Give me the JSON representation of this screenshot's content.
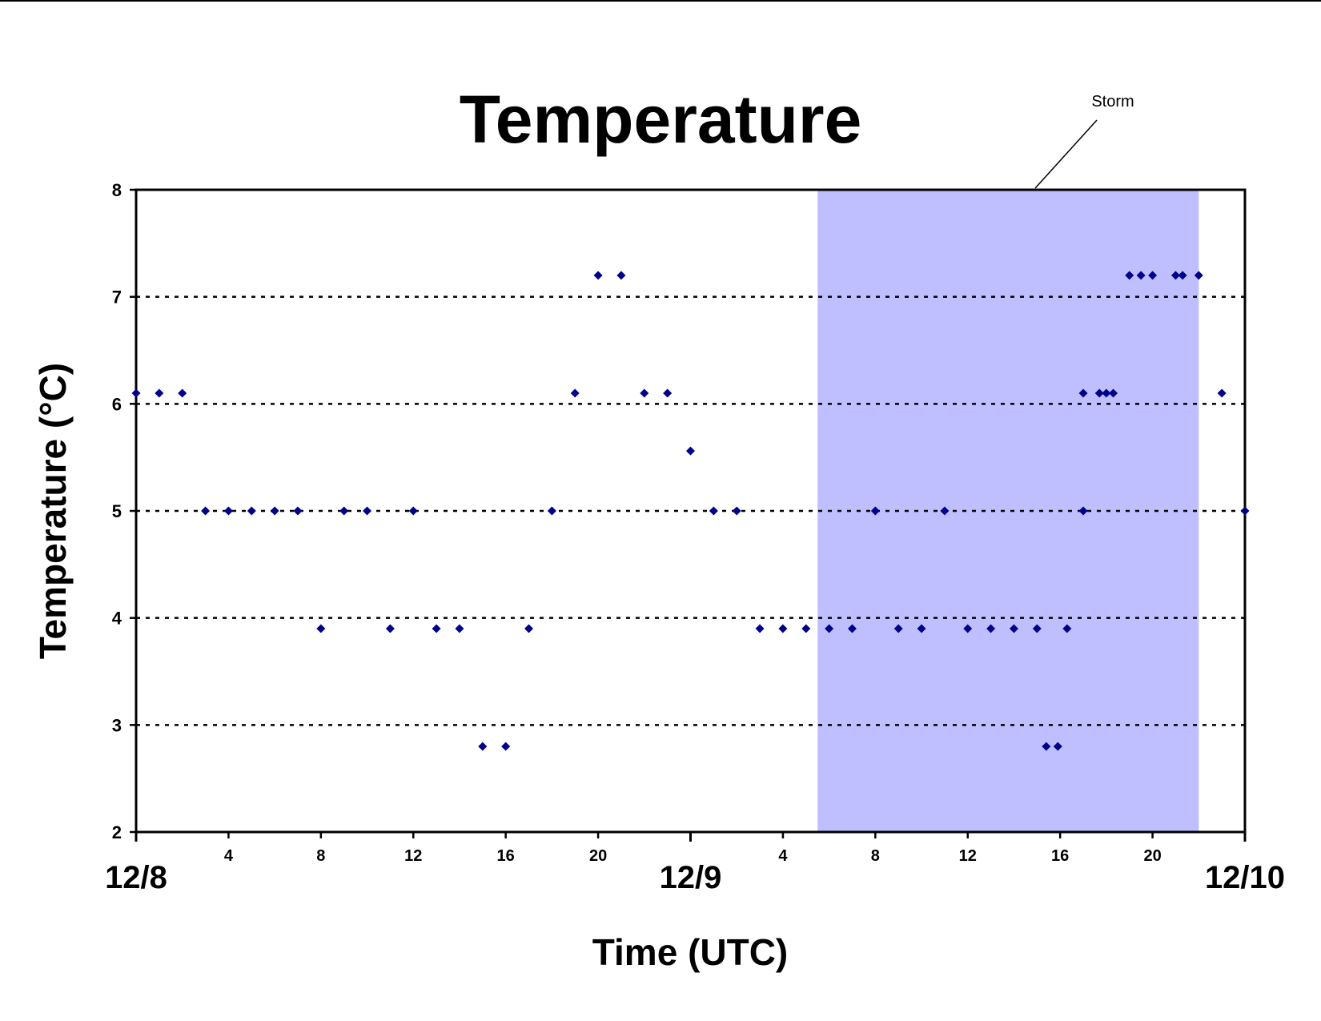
{
  "chart_data": {
    "type": "scatter",
    "title": "Temperature",
    "xlabel": "Time (UTC)",
    "ylabel": "Temperature (°C)",
    "y_ticks": [
      2,
      3,
      4,
      5,
      6,
      7,
      8
    ],
    "ylim": [
      2,
      8
    ],
    "xlim": [
      0,
      48
    ],
    "x_unit": "hours after 12/8 00 UTC",
    "x_hour_ticks": [
      {
        "x": 4,
        "label": "4"
      },
      {
        "x": 8,
        "label": "8"
      },
      {
        "x": 12,
        "label": "12"
      },
      {
        "x": 16,
        "label": "16"
      },
      {
        "x": 20,
        "label": "20"
      },
      {
        "x": 28,
        "label": "4"
      },
      {
        "x": 32,
        "label": "8"
      },
      {
        "x": 36,
        "label": "12"
      },
      {
        "x": 40,
        "label": "16"
      },
      {
        "x": 44,
        "label": "20"
      }
    ],
    "x_date_ticks": [
      {
        "x": 0,
        "label": "12/8"
      },
      {
        "x": 24,
        "label": "12/9"
      },
      {
        "x": 48,
        "label": "12/10"
      }
    ],
    "grid": "horizontal dotted",
    "marker_color": "#00008B",
    "annotation": {
      "text": "Storm",
      "x_start": 29.5,
      "x_end": 46,
      "color": "#BFBFFF"
    },
    "series": [
      {
        "points": [
          [
            0,
            6.1
          ],
          [
            1,
            6.1
          ],
          [
            2,
            6.1
          ],
          [
            3,
            5.0
          ],
          [
            4,
            5.0
          ],
          [
            5,
            5.0
          ],
          [
            6,
            5.0
          ],
          [
            7,
            5.0
          ],
          [
            8,
            3.9
          ],
          [
            9,
            5.0
          ],
          [
            10,
            5.0
          ],
          [
            11,
            3.9
          ],
          [
            12,
            5.0
          ],
          [
            13,
            3.9
          ],
          [
            14,
            3.9
          ],
          [
            15,
            2.8
          ],
          [
            16,
            2.8
          ],
          [
            17,
            3.9
          ],
          [
            18,
            5.0
          ],
          [
            19,
            6.1
          ],
          [
            20,
            7.2
          ],
          [
            21,
            7.2
          ],
          [
            22,
            6.1
          ],
          [
            23,
            6.1
          ],
          [
            24,
            5.56
          ],
          [
            25,
            5.0
          ],
          [
            26,
            5.0
          ],
          [
            27,
            3.9
          ],
          [
            28,
            3.9
          ],
          [
            29,
            3.9
          ],
          [
            30,
            3.9
          ],
          [
            31,
            3.9
          ],
          [
            32,
            5.0
          ],
          [
            33,
            3.9
          ],
          [
            34,
            3.9
          ],
          [
            35,
            5.0
          ],
          [
            36,
            3.9
          ],
          [
            37,
            3.9
          ],
          [
            38,
            3.9
          ],
          [
            39,
            3.9
          ],
          [
            39.4,
            2.8
          ],
          [
            39.9,
            2.8
          ],
          [
            40.3,
            3.9
          ],
          [
            41,
            6.1
          ],
          [
            41,
            5.0
          ],
          [
            41.7,
            6.1
          ],
          [
            42,
            6.1
          ],
          [
            42.3,
            6.1
          ],
          [
            43,
            7.2
          ],
          [
            43.5,
            7.2
          ],
          [
            44,
            7.2
          ],
          [
            45,
            7.2
          ],
          [
            45.3,
            7.2
          ],
          [
            46,
            7.2
          ],
          [
            47,
            6.1
          ],
          [
            48,
            5.0
          ]
        ]
      }
    ]
  }
}
